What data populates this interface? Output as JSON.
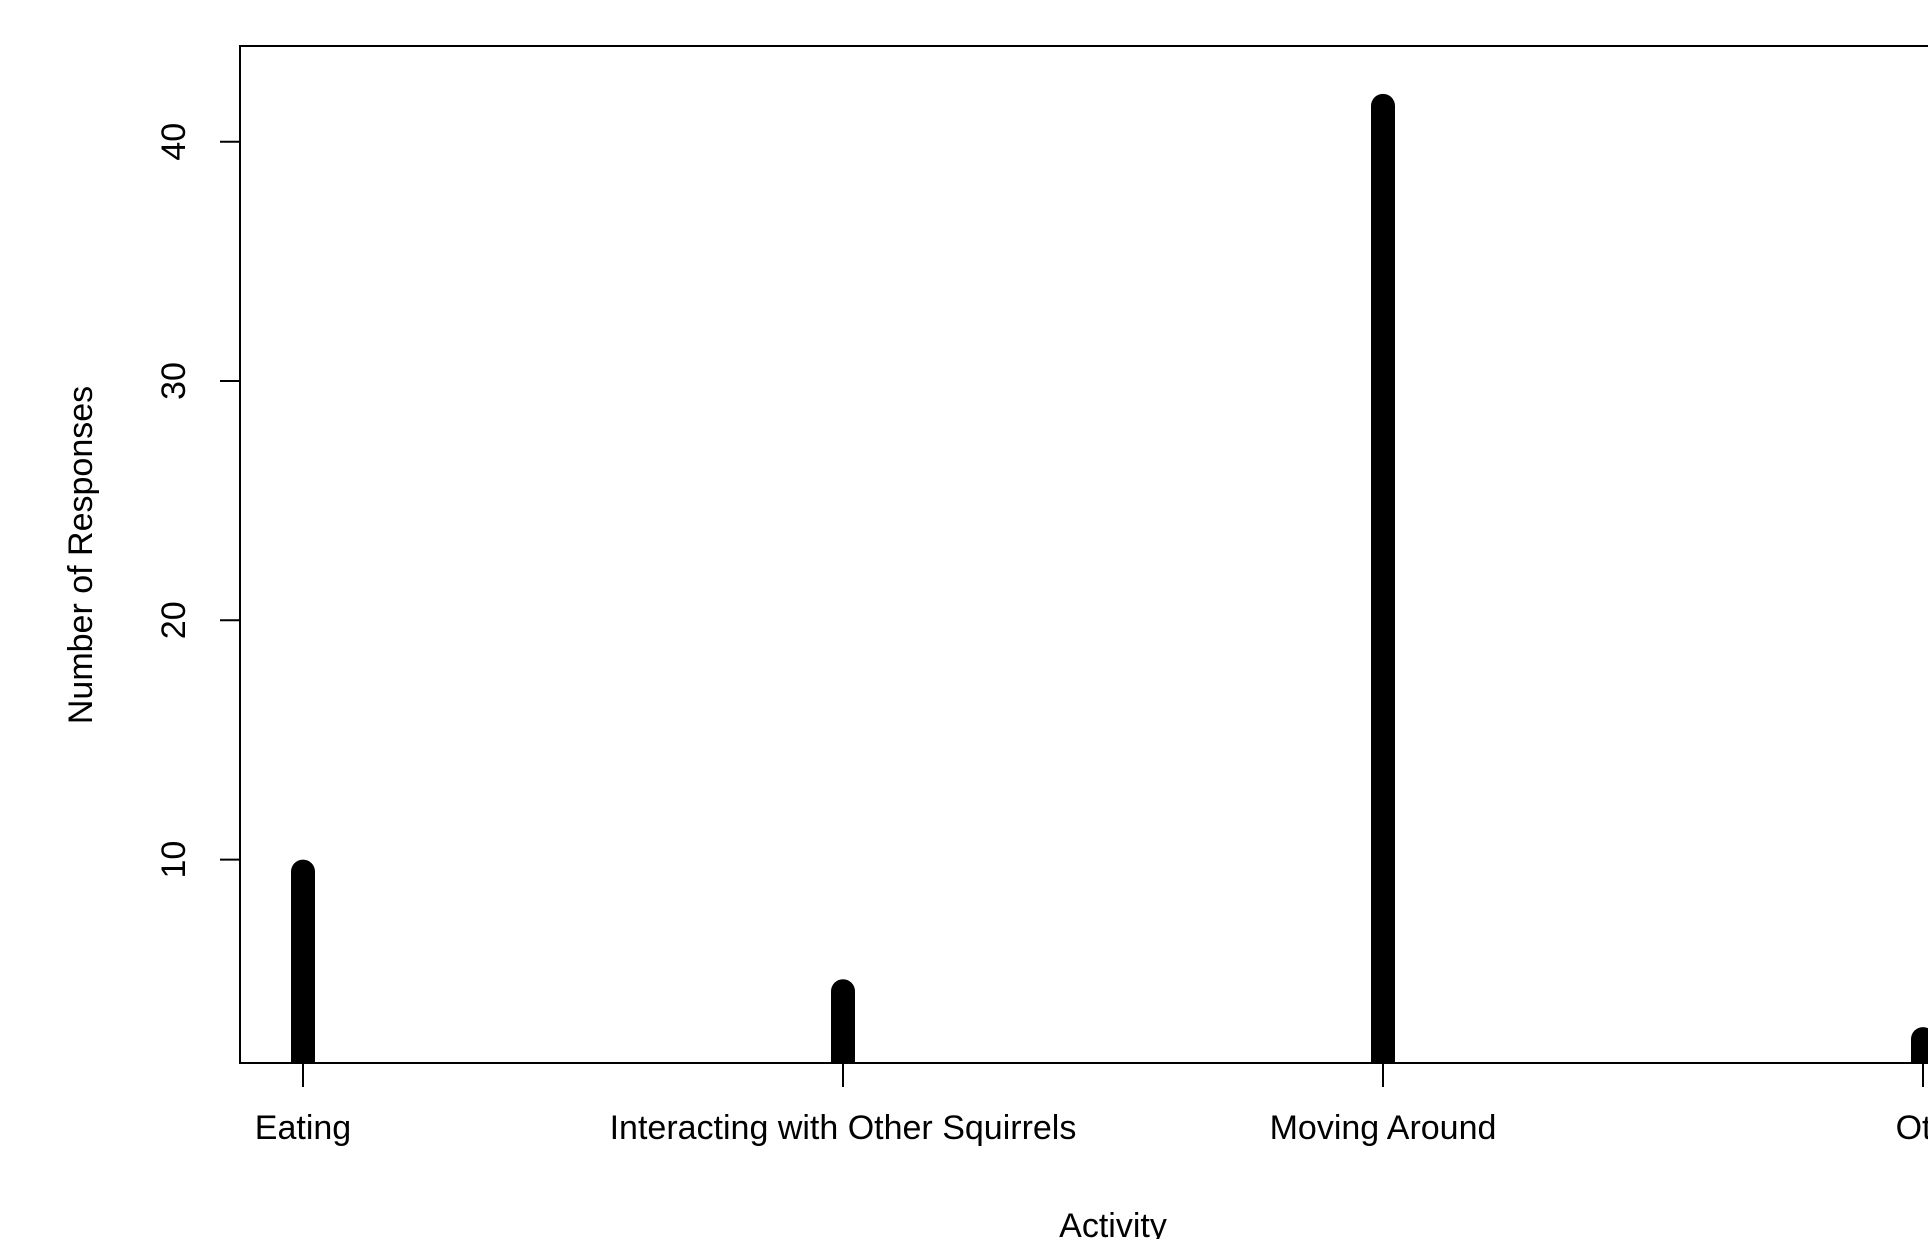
{
  "chart_data": {
    "type": "bar",
    "title": "",
    "xlabel": "Activity",
    "ylabel": "Number of Responses",
    "categories": [
      "Eating",
      "Interacting with Other Squirrels",
      "Moving Around",
      "Oth"
    ],
    "values": [
      10,
      5,
      42,
      3
    ],
    "ylim": [
      1.5,
      44.0
    ],
    "yticks": [
      10,
      20,
      30,
      40
    ],
    "ytick_labels": [
      "10",
      "20",
      "30",
      "40"
    ],
    "grid": false,
    "legend": "none",
    "bar_color": "#000000"
  }
}
